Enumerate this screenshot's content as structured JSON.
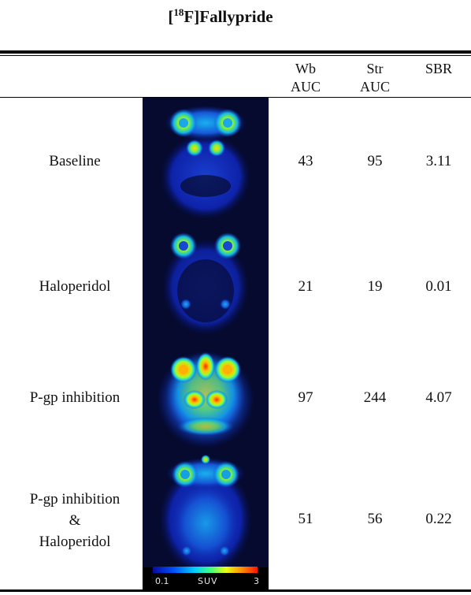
{
  "title": {
    "prefix": "[",
    "sup": "18",
    "main": "F]Fallypride"
  },
  "columns": {
    "wb": {
      "line1": "Wb",
      "line2": "AUC"
    },
    "str": {
      "line1": "Str",
      "line2": "AUC"
    },
    "sbr": "SBR"
  },
  "rows": [
    {
      "label": "Baseline",
      "wb": "43",
      "str": "95",
      "sbr": "3.11"
    },
    {
      "label": "Haloperidol",
      "wb": "21",
      "str": "19",
      "sbr": "0.01"
    },
    {
      "label": "P-gp inhibition",
      "wb": "97",
      "str": "244",
      "sbr": "4.07"
    },
    {
      "label_lines": [
        "P-gp inhibition",
        "&",
        "Haloperidol"
      ],
      "wb": "51",
      "str": "56",
      "sbr": "0.22"
    }
  ],
  "colorbar": {
    "min": "0.1",
    "label": "SUV",
    "max": "3"
  }
}
